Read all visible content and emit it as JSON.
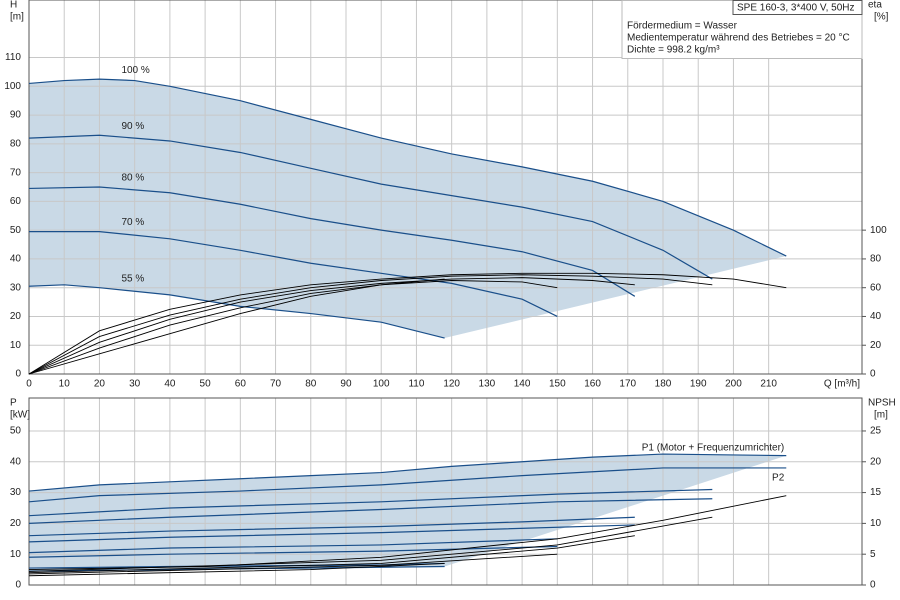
{
  "info": [
    "SPE 160-3, 3*400 V, 50Hz",
    "Fördermedium = Wasser",
    "Medientemperatur während des Betriebes = 20 °C",
    "Dichte = 998.2 kg/m³"
  ],
  "chart_data": [
    {
      "type": "line",
      "ylabel": [
        "H",
        "[m]"
      ],
      "y2label": [
        "eta",
        "[%]"
      ],
      "xlabel": "Q [m³/h]",
      "xlim": [
        0,
        236.5
      ],
      "xticks": [
        0,
        10,
        20,
        30,
        40,
        50,
        60,
        70,
        80,
        90,
        100,
        110,
        120,
        130,
        140,
        150,
        160,
        170,
        180,
        190,
        200,
        210
      ],
      "ylim": [
        0,
        130
      ],
      "yticks": [
        0,
        10,
        20,
        30,
        40,
        50,
        60,
        70,
        80,
        90,
        100,
        110
      ],
      "y2lim": [
        0,
        260
      ],
      "y2ticks": [
        0,
        20,
        40,
        60,
        80,
        100
      ],
      "grid": true,
      "shade_color": "#c9d9e6",
      "series": [
        {
          "name": "100 %",
          "color": "#1a4f8a",
          "x": [
            0,
            10,
            20,
            30,
            40,
            60,
            80,
            100,
            120,
            140,
            160,
            180,
            200,
            215
          ],
          "values": [
            101,
            102,
            102.5,
            102,
            100,
            95,
            88.5,
            82,
            76.5,
            72,
            67,
            60,
            50,
            41
          ]
        },
        {
          "name": "90 %",
          "color": "#1a4f8a",
          "x": [
            0,
            20,
            40,
            60,
            80,
            100,
            120,
            140,
            160,
            180,
            194
          ],
          "values": [
            82,
            83,
            81,
            77,
            71.5,
            66,
            62,
            58,
            53,
            43,
            33
          ]
        },
        {
          "name": "80 %",
          "color": "#1a4f8a",
          "x": [
            0,
            20,
            40,
            60,
            80,
            100,
            120,
            140,
            160,
            172
          ],
          "values": [
            64.5,
            65,
            63,
            59,
            54,
            50,
            46.5,
            42.5,
            36,
            27
          ]
        },
        {
          "name": "70 %",
          "color": "#1a4f8a",
          "x": [
            0,
            20,
            40,
            60,
            80,
            100,
            120,
            140,
            150
          ],
          "values": [
            49.5,
            49.5,
            47,
            43,
            38.5,
            35,
            31.5,
            26,
            20
          ]
        },
        {
          "name": "55 %",
          "color": "#1a4f8a",
          "x": [
            0,
            10,
            20,
            40,
            60,
            80,
            100,
            118
          ],
          "values": [
            30.5,
            31,
            30,
            27.5,
            23.5,
            21,
            18,
            12.5
          ]
        },
        {
          "axis": "y2",
          "color": "#000000",
          "x": [
            0,
            20,
            40,
            60,
            80,
            100,
            120,
            140,
            160,
            180,
            200,
            215
          ],
          "values": [
            0,
            30,
            45,
            55,
            62,
            66,
            69,
            70,
            70,
            69,
            66,
            60
          ]
        },
        {
          "axis": "y2",
          "color": "#000000",
          "x": [
            0,
            20,
            40,
            60,
            80,
            100,
            120,
            140,
            160,
            180,
            194
          ],
          "values": [
            0,
            26,
            41,
            52,
            60,
            65,
            68,
            69,
            68,
            66,
            62
          ]
        },
        {
          "axis": "y2",
          "color": "#000000",
          "x": [
            0,
            20,
            40,
            60,
            80,
            100,
            120,
            140,
            160,
            172
          ],
          "values": [
            0,
            22,
            38,
            50,
            58,
            63,
            66,
            67,
            65,
            62
          ]
        },
        {
          "axis": "y2",
          "color": "#000000",
          "x": [
            0,
            20,
            40,
            60,
            80,
            100,
            120,
            140,
            150
          ],
          "values": [
            0,
            18,
            34,
            46,
            56,
            62,
            65,
            64,
            60
          ]
        },
        {
          "axis": "y2",
          "color": "#000000",
          "x": [
            0,
            20,
            40,
            60,
            80,
            100,
            118
          ],
          "values": [
            0,
            14,
            28,
            42,
            54,
            62,
            66
          ]
        }
      ]
    },
    {
      "type": "line",
      "ylabel": [
        "P",
        "[kW]"
      ],
      "y2label": [
        "NPSH",
        "[m]"
      ],
      "xlim": [
        0,
        236.5
      ],
      "xticks": [
        0,
        10,
        20,
        30,
        40,
        50,
        60,
        70,
        80,
        90,
        100,
        110,
        120,
        130,
        140,
        150,
        160,
        170,
        180,
        190,
        200,
        210
      ],
      "ylim": [
        0,
        60.7
      ],
      "yticks": [
        0,
        10,
        20,
        30,
        40,
        50
      ],
      "y2lim": [
        0,
        30.35
      ],
      "y2ticks": [
        0,
        5,
        10,
        15,
        20,
        25
      ],
      "grid": true,
      "shade_color": "#c9d9e6",
      "series": [
        {
          "name": "P1 (Motor + Frequenzumrichter)",
          "color": "#1a4f8a",
          "x": [
            0,
            20,
            40,
            60,
            80,
            100,
            120,
            140,
            160,
            180,
            215
          ],
          "values": [
            30.5,
            32.5,
            33.5,
            34.5,
            35.5,
            36.5,
            38.5,
            40,
            41.5,
            42.5,
            42
          ]
        },
        {
          "name": "P2",
          "color": "#1a4f8a",
          "x": [
            0,
            20,
            60,
            100,
            140,
            180,
            215
          ],
          "values": [
            27,
            29,
            30.5,
            32.5,
            35.5,
            38,
            38
          ]
        },
        {
          "color": "#1a4f8a",
          "x": [
            0,
            40,
            100,
            150,
            194
          ],
          "values": [
            22.5,
            25,
            27,
            29.5,
            31
          ]
        },
        {
          "color": "#1a4f8a",
          "x": [
            0,
            40,
            100,
            150,
            194
          ],
          "values": [
            20,
            22,
            24.5,
            27,
            28
          ]
        },
        {
          "color": "#1a4f8a",
          "x": [
            0,
            40,
            100,
            140,
            172
          ],
          "values": [
            16,
            17.5,
            19,
            20.5,
            22
          ]
        },
        {
          "color": "#1a4f8a",
          "x": [
            0,
            40,
            100,
            172
          ],
          "values": [
            14,
            15.5,
            17,
            19.5
          ]
        },
        {
          "color": "#1a4f8a",
          "x": [
            0,
            40,
            100,
            150
          ],
          "values": [
            10.5,
            12,
            13,
            15
          ]
        },
        {
          "color": "#1a4f8a",
          "x": [
            0,
            40,
            100,
            150
          ],
          "values": [
            9,
            10,
            11,
            12.5
          ]
        },
        {
          "color": "#1a4f8a",
          "x": [
            0,
            40,
            100,
            118
          ],
          "values": [
            5.5,
            6,
            6.5,
            7
          ]
        },
        {
          "color": "#1a4f8a",
          "x": [
            0,
            40,
            118
          ],
          "values": [
            4.5,
            5,
            6
          ]
        },
        {
          "axis": "y2",
          "color": "#000000",
          "x": [
            0,
            50,
            100,
            150,
            180,
            215
          ],
          "values": [
            2.5,
            3,
            4.5,
            7.5,
            10.5,
            14.5
          ]
        },
        {
          "axis": "y2",
          "color": "#000000",
          "x": [
            0,
            100,
            150,
            194
          ],
          "values": [
            2.2,
            4,
            6.5,
            11
          ]
        },
        {
          "axis": "y2",
          "color": "#000000",
          "x": [
            0,
            100,
            150,
            172
          ],
          "values": [
            2,
            3.5,
            6,
            8
          ]
        },
        {
          "axis": "y2",
          "color": "#000000",
          "x": [
            0,
            100,
            150
          ],
          "values": [
            1.8,
            3.2,
            5
          ]
        },
        {
          "axis": "y2",
          "color": "#000000",
          "x": [
            0,
            80,
            118
          ],
          "values": [
            1.5,
            2.5,
            3.5
          ]
        }
      ]
    }
  ]
}
